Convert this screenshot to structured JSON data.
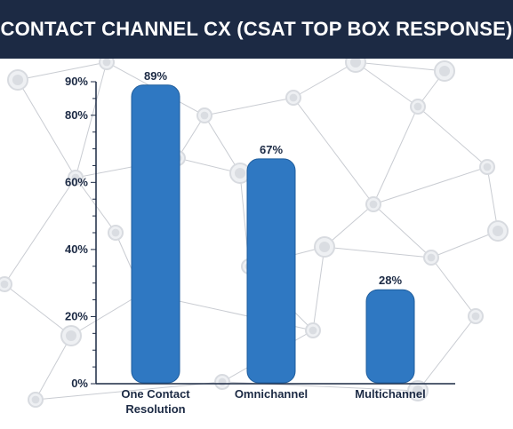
{
  "header": {
    "title": "CONTACT CHANNEL CX (CSAT TOP BOX RESPONSE)"
  },
  "colors": {
    "header_bg": "#1c2a44",
    "bar": "#2f78c2",
    "bar_edge": "#1f5d9c",
    "axis": "#1c2a44",
    "network": "#c9ccd2"
  },
  "chart_data": {
    "type": "bar",
    "title": "CONTACT CHANNEL CX (CSAT TOP BOX RESPONSE)",
    "categories": [
      "One Contact Resolution",
      "Omnichannel",
      "Multichannel"
    ],
    "category_lines": [
      [
        "One Contact",
        "Resolution"
      ],
      [
        "Omnichannel"
      ],
      [
        "Multichannel"
      ]
    ],
    "values": [
      89,
      67,
      28
    ],
    "value_labels": [
      "89%",
      "67%",
      "28%"
    ],
    "ylim": [
      0,
      90
    ],
    "yticks": [
      0,
      20,
      40,
      60,
      80,
      90
    ],
    "ytick_labels": [
      "0%",
      "20%",
      "40%",
      "60%",
      "80%",
      "90%"
    ],
    "xlabel": "",
    "ylabel": "",
    "grid": false,
    "legend": "none"
  }
}
